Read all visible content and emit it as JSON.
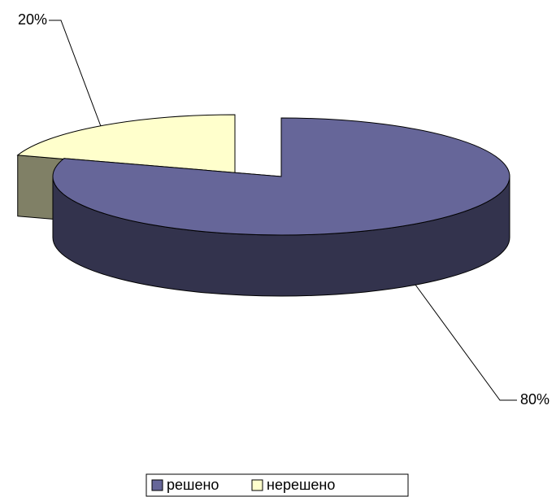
{
  "chart_data": {
    "type": "pie3d",
    "categories": [
      "решено",
      "нерешено"
    ],
    "values": [
      80,
      20
    ],
    "value_labels": [
      "80%",
      "20%"
    ],
    "colors": [
      "#666699",
      "#ffffcc"
    ],
    "legend": "bottom"
  }
}
